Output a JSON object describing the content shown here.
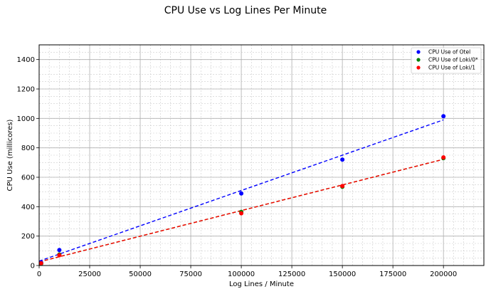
{
  "chart_data": {
    "type": "scatter",
    "title": "CPU Use vs Log Lines Per Minute",
    "xlabel": "Log Lines / Minute",
    "ylabel": "CPU Use (millicores)",
    "xlim": [
      0,
      220000
    ],
    "ylim": [
      0,
      1500
    ],
    "xticks": [
      0,
      25000,
      50000,
      75000,
      100000,
      125000,
      150000,
      175000,
      200000
    ],
    "yticks": [
      0,
      200,
      400,
      600,
      800,
      1000,
      1200,
      1400
    ],
    "grid": true,
    "minor_grid": true,
    "legend_position": "top-right",
    "series": [
      {
        "name": "CPU Use of Otel",
        "color": "#0000ff",
        "points": [
          [
            1000,
            20
          ],
          [
            10000,
            105
          ],
          [
            100000,
            490
          ],
          [
            150000,
            720
          ],
          [
            200000,
            1015
          ]
        ],
        "fit_line": [
          [
            0,
            30
          ],
          [
            200000,
            990
          ]
        ]
      },
      {
        "name": "CPU Use of Loki/0*",
        "color": "#008000",
        "points": [
          [
            1000,
            12
          ],
          [
            10000,
            75
          ],
          [
            100000,
            365
          ],
          [
            150000,
            535
          ],
          [
            200000,
            730
          ]
        ],
        "fit_line": [
          [
            0,
            25
          ],
          [
            200000,
            722
          ]
        ]
      },
      {
        "name": "CPU Use of Loki/1",
        "color": "#ff0000",
        "points": [
          [
            1000,
            15
          ],
          [
            10000,
            70
          ],
          [
            100000,
            355
          ],
          [
            150000,
            540
          ],
          [
            200000,
            735
          ]
        ],
        "fit_line": [
          [
            0,
            25
          ],
          [
            200000,
            722
          ]
        ]
      }
    ]
  }
}
